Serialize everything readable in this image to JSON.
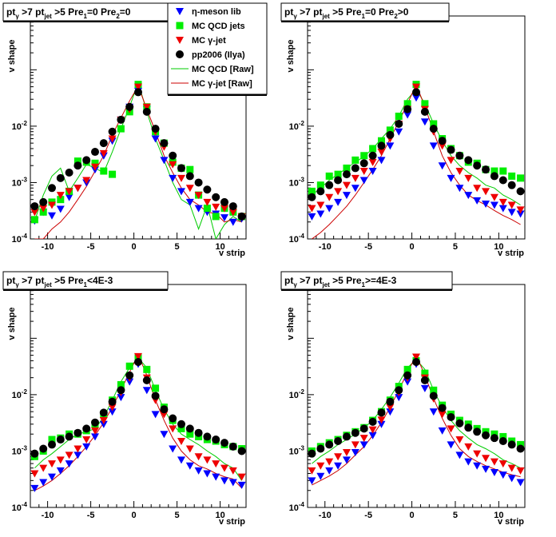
{
  "colors": {
    "eta": "#0000ff",
    "qcd": "#00ee00",
    "gjet": "#ee0000",
    "pp": "#000000",
    "qcd_raw": "#00cc00",
    "gjet_raw": "#cc0000"
  },
  "legend": [
    {
      "label": "η-meson lib",
      "marker": "triangle-down",
      "color": "#0000ff"
    },
    {
      "label": "MC QCD jets",
      "marker": "square",
      "color": "#00ee00"
    },
    {
      "label": "MC γ-jet",
      "marker": "triangle-down",
      "color": "#ee0000"
    },
    {
      "label": "pp2006 (Ilya)",
      "marker": "circle",
      "color": "#000000"
    },
    {
      "label": "MC QCD [Raw]",
      "marker": "line",
      "color": "#00cc00"
    },
    {
      "label": "MC γ-jet [Raw]",
      "marker": "line",
      "color": "#cc0000"
    }
  ],
  "chart_data": [
    {
      "type": "scatter",
      "title": "pt_γ>7 pt_jet>5 Pre_1=0 Pre_2=0",
      "xlabel": "v strip",
      "ylabel": "v shape",
      "yscale": "log",
      "xlim": [
        -12,
        13
      ],
      "ylim": [
        0.0001,
        0.9
      ],
      "x_ticks": [
        "-10",
        "-5",
        "0",
        "5",
        "10"
      ],
      "y_ticks": [
        "10^-4",
        "10^-3",
        "10^-2"
      ],
      "x": [
        -11.5,
        -10.5,
        -9.5,
        -8.5,
        -7.5,
        -6.5,
        -5.5,
        -4.5,
        -3.5,
        -2.5,
        -1.5,
        -0.5,
        0.5,
        1.5,
        2.5,
        3.5,
        4.5,
        5.5,
        6.5,
        7.5,
        8.5,
        9.5,
        10.5,
        11.5,
        12.5
      ],
      "series": [
        {
          "name": "η-meson lib",
          "kind": "marker",
          "values": [
            0.00021,
            0.0003,
            0.00026,
            0.00034,
            0.00055,
            0.0008,
            0.001,
            0.0017,
            0.003,
            0.0055,
            0.013,
            0.022,
            0.042,
            0.02,
            0.006,
            0.0025,
            0.0012,
            0.0007,
            0.00045,
            0.00035,
            0.0003,
            0.00028,
            0.00024,
            0.0002,
            0.00023
          ]
        },
        {
          "name": "MC QCD jets",
          "kind": "marker",
          "values": [
            0.00022,
            0.0003,
            0.00045,
            0.0005,
            0.0007,
            0.0024,
            0.0023,
            0.0022,
            0.0016,
            0.0014,
            0.009,
            0.018,
            0.055,
            0.022,
            0.008,
            0.005,
            0.0023,
            0.0018,
            0.0017,
            0.0006,
            0.00035,
            0.00025,
            0.00035,
            0.0003,
            0.00025
          ]
        },
        {
          "name": "MC γ-jet",
          "kind": "marker",
          "values": [
            0.0003,
            0.00035,
            0.0004,
            0.0006,
            0.0007,
            0.0008,
            0.0011,
            0.0019,
            0.0033,
            0.006,
            0.013,
            0.02,
            0.05,
            0.022,
            0.008,
            0.0043,
            0.0021,
            0.0012,
            0.0008,
            0.0006,
            0.00045,
            0.00037,
            0.00035,
            0.0003,
            0.00025
          ]
        },
        {
          "name": "pp2006 (Ilya)",
          "kind": "marker",
          "values": [
            0.00038,
            0.00045,
            0.0008,
            0.0012,
            0.0015,
            0.002,
            0.0025,
            0.0035,
            0.005,
            0.008,
            0.013,
            0.022,
            0.04,
            0.018,
            0.009,
            0.005,
            0.003,
            0.0018,
            0.0013,
            0.001,
            0.00075,
            0.00055,
            0.00045,
            0.00038,
            0.00025
          ]
        },
        {
          "name": "MC QCD [Raw]",
          "kind": "line",
          "values": [
            0.00021,
            0.0006,
            0.0013,
            0.0018,
            0.0007,
            0.0012,
            0.0021,
            0.0018,
            0.0015,
            0.0035,
            0.009,
            0.022,
            0.06,
            0.018,
            0.006,
            0.0025,
            0.001,
            0.0005,
            0.0004,
            0.00015,
            0.0004,
            0.0001,
            0.00018,
            0.00025,
            0.0002
          ]
        },
        {
          "name": "MC γ-jet [Raw]",
          "kind": "line",
          "values": [
            0.0001,
            0.0001,
            0.00015,
            0.0002,
            0.0003,
            0.0005,
            0.00085,
            0.0016,
            0.003,
            0.007,
            0.014,
            0.028,
            0.052,
            0.02,
            0.008,
            0.003,
            0.0015,
            0.0008,
            0.0005,
            0.0004,
            0.0003,
            0.00028,
            0.0002,
            0.00022,
            0.0002
          ]
        }
      ]
    },
    {
      "type": "scatter",
      "title": "pt_γ>7 pt_jet>5 Pre_1=0 Pre_2>0",
      "xlabel": "v strip",
      "ylabel": "v shape",
      "yscale": "log",
      "xlim": [
        -12,
        13
      ],
      "ylim": [
        0.0001,
        0.9
      ],
      "x_ticks": [
        "-10",
        "-5",
        "0",
        "5",
        "10"
      ],
      "y_ticks": [
        "10^-4",
        "10^-3",
        "10^-2"
      ],
      "x": [
        -11.5,
        -10.5,
        -9.5,
        -8.5,
        -7.5,
        -6.5,
        -5.5,
        -4.5,
        -3.5,
        -2.5,
        -1.5,
        -0.5,
        0.5,
        1.5,
        2.5,
        3.5,
        4.5,
        5.5,
        6.5,
        7.5,
        8.5,
        9.5,
        10.5,
        11.5,
        12.5
      ],
      "series": [
        {
          "name": "η-meson lib",
          "kind": "marker",
          "values": [
            0.00025,
            0.00028,
            0.00035,
            0.00045,
            0.0006,
            0.0008,
            0.0011,
            0.0016,
            0.0025,
            0.0045,
            0.008,
            0.016,
            0.032,
            0.012,
            0.0045,
            0.002,
            0.0012,
            0.0008,
            0.0006,
            0.00048,
            0.00042,
            0.0004,
            0.00035,
            0.0003,
            0.00028
          ]
        },
        {
          "name": "MC QCD jets",
          "kind": "marker",
          "values": [
            0.0007,
            0.0009,
            0.0013,
            0.0014,
            0.0018,
            0.0025,
            0.003,
            0.004,
            0.0055,
            0.0085,
            0.015,
            0.025,
            0.055,
            0.025,
            0.011,
            0.006,
            0.004,
            0.003,
            0.0023,
            0.0022,
            0.0017,
            0.0016,
            0.0016,
            0.0013,
            0.0012
          ]
        },
        {
          "name": "MC γ-jet",
          "kind": "marker",
          "values": [
            0.00035,
            0.0004,
            0.00055,
            0.0007,
            0.0009,
            0.0012,
            0.0016,
            0.0023,
            0.0035,
            0.006,
            0.011,
            0.02,
            0.05,
            0.02,
            0.008,
            0.0045,
            0.0025,
            0.0016,
            0.0012,
            0.0008,
            0.0007,
            0.00055,
            0.00045,
            0.0004,
            0.00033
          ]
        },
        {
          "name": "pp2006 (Ilya)",
          "kind": "marker",
          "values": [
            0.00055,
            0.0007,
            0.0009,
            0.0011,
            0.0014,
            0.0018,
            0.0022,
            0.003,
            0.0045,
            0.007,
            0.011,
            0.02,
            0.04,
            0.018,
            0.009,
            0.0055,
            0.0038,
            0.003,
            0.0025,
            0.002,
            0.0017,
            0.0013,
            0.0011,
            0.0009,
            0.0007
          ]
        },
        {
          "name": "MC QCD [Raw]",
          "kind": "line",
          "values": [
            0.0006,
            0.0008,
            0.0011,
            0.0014,
            0.0018,
            0.0023,
            0.0029,
            0.004,
            0.006,
            0.009,
            0.015,
            0.03,
            0.045,
            0.025,
            0.011,
            0.0055,
            0.003,
            0.002,
            0.0015,
            0.0012,
            0.0009,
            0.0008,
            0.0006,
            0.0005,
            0.0004
          ]
        },
        {
          "name": "MC γ-jet [Raw]",
          "kind": "line",
          "values": [
            0.0001,
            0.00013,
            0.00018,
            0.00026,
            0.00038,
            0.0006,
            0.001,
            0.0017,
            0.003,
            0.006,
            0.012,
            0.025,
            0.055,
            0.022,
            0.008,
            0.003,
            0.0015,
            0.0009,
            0.0006,
            0.00048,
            0.0004,
            0.00032,
            0.00026,
            0.00022,
            0.00018
          ]
        }
      ]
    },
    {
      "type": "scatter",
      "title": "pt_γ>7 pt_jet>5 Pre_1<4E-3",
      "xlabel": "v strip",
      "ylabel": "v shape",
      "yscale": "log",
      "xlim": [
        -12,
        13
      ],
      "ylim": [
        0.0001,
        0.9
      ],
      "x_ticks": [
        "-10",
        "-5",
        "0",
        "5",
        "10"
      ],
      "y_ticks": [
        "10^-4",
        "10^-3",
        "10^-2"
      ],
      "x": [
        -11.5,
        -10.5,
        -9.5,
        -8.5,
        -7.5,
        -6.5,
        -5.5,
        -4.5,
        -3.5,
        -2.5,
        -1.5,
        -0.5,
        0.5,
        1.5,
        2.5,
        3.5,
        4.5,
        5.5,
        6.5,
        7.5,
        8.5,
        9.5,
        10.5,
        11.5,
        12.5
      ],
      "series": [
        {
          "name": "η-meson lib",
          "kind": "marker",
          "values": [
            0.00022,
            0.00028,
            0.00035,
            0.00045,
            0.0006,
            0.00085,
            0.0012,
            0.0018,
            0.003,
            0.005,
            0.009,
            0.017,
            0.035,
            0.012,
            0.0045,
            0.002,
            0.0011,
            0.0007,
            0.00055,
            0.00045,
            0.0004,
            0.00035,
            0.0003,
            0.00028,
            0.00025
          ]
        },
        {
          "name": "MC QCD jets",
          "kind": "marker",
          "values": [
            0.0008,
            0.001,
            0.0016,
            0.0017,
            0.002,
            0.002,
            0.0023,
            0.003,
            0.0045,
            0.008,
            0.015,
            0.032,
            0.045,
            0.028,
            0.013,
            0.006,
            0.0035,
            0.0025,
            0.002,
            0.0018,
            0.0016,
            0.0015,
            0.0013,
            0.0012,
            0.0011
          ]
        },
        {
          "name": "MC γ-jet",
          "kind": "marker",
          "values": [
            0.0004,
            0.0005,
            0.0006,
            0.0007,
            0.00085,
            0.0011,
            0.0016,
            0.0023,
            0.0035,
            0.006,
            0.011,
            0.02,
            0.048,
            0.02,
            0.008,
            0.0045,
            0.0025,
            0.0015,
            0.0011,
            0.0008,
            0.0007,
            0.0006,
            0.0005,
            0.00045,
            0.00035
          ]
        },
        {
          "name": "pp2006 (Ilya)",
          "kind": "marker",
          "values": [
            0.0009,
            0.0011,
            0.0013,
            0.0016,
            0.0018,
            0.0021,
            0.0025,
            0.0032,
            0.0048,
            0.0075,
            0.012,
            0.022,
            0.038,
            0.018,
            0.0095,
            0.0055,
            0.0038,
            0.003,
            0.0025,
            0.0021,
            0.0018,
            0.0016,
            0.0014,
            0.0012,
            0.001
          ]
        },
        {
          "name": "MC QCD [Raw]",
          "kind": "line",
          "values": [
            0.0005,
            0.0007,
            0.0009,
            0.0012,
            0.0016,
            0.002,
            0.0022,
            0.0025,
            0.004,
            0.008,
            0.017,
            0.03,
            0.045,
            0.03,
            0.012,
            0.0055,
            0.003,
            0.002,
            0.0016,
            0.0013,
            0.001,
            0.0008,
            0.0006,
            0.0005,
            0.0003
          ]
        },
        {
          "name": "MC γ-jet [Raw]",
          "kind": "line",
          "values": [
            0.0002,
            0.00024,
            0.0003,
            0.0004,
            0.00055,
            0.0008,
            0.0012,
            0.0019,
            0.0032,
            0.006,
            0.012,
            0.025,
            0.052,
            0.022,
            0.008,
            0.0035,
            0.0017,
            0.001,
            0.0007,
            0.00055,
            0.00048,
            0.0004,
            0.00035,
            0.00032,
            0.00022
          ]
        }
      ]
    },
    {
      "type": "scatter",
      "title": "pt_γ>7 pt_jet>5 Pre_1>=4E-3",
      "xlabel": "v strip",
      "ylabel": "v shape",
      "yscale": "log",
      "xlim": [
        -12,
        13
      ],
      "ylim": [
        0.0001,
        0.9
      ],
      "x_ticks": [
        "-10",
        "-5",
        "0",
        "5",
        "10"
      ],
      "y_ticks": [
        "10^-4",
        "10^-3",
        "10^-2"
      ],
      "x": [
        -11.5,
        -10.5,
        -9.5,
        -8.5,
        -7.5,
        -6.5,
        -5.5,
        -4.5,
        -3.5,
        -2.5,
        -1.5,
        -0.5,
        0.5,
        1.5,
        2.5,
        3.5,
        4.5,
        5.5,
        6.5,
        7.5,
        8.5,
        9.5,
        10.5,
        11.5,
        12.5
      ],
      "series": [
        {
          "name": "η-meson lib",
          "kind": "marker",
          "values": [
            0.0003,
            0.00036,
            0.00045,
            0.00055,
            0.0007,
            0.00095,
            0.0013,
            0.0019,
            0.003,
            0.005,
            0.009,
            0.017,
            0.035,
            0.013,
            0.005,
            0.0023,
            0.0013,
            0.00085,
            0.00065,
            0.00055,
            0.00048,
            0.00042,
            0.00038,
            0.00033,
            0.00028
          ]
        },
        {
          "name": "MC QCD jets",
          "kind": "marker",
          "values": [
            0.001,
            0.0012,
            0.0014,
            0.0016,
            0.0019,
            0.0022,
            0.0026,
            0.0035,
            0.005,
            0.008,
            0.014,
            0.028,
            0.04,
            0.024,
            0.012,
            0.0065,
            0.0045,
            0.0035,
            0.003,
            0.0025,
            0.0022,
            0.002,
            0.0018,
            0.0015,
            0.0013
          ]
        },
        {
          "name": "MC γ-jet",
          "kind": "marker",
          "values": [
            0.00045,
            0.00055,
            0.00065,
            0.0008,
            0.00095,
            0.0013,
            0.0017,
            0.0024,
            0.0036,
            0.006,
            0.011,
            0.02,
            0.047,
            0.02,
            0.0085,
            0.0045,
            0.0025,
            0.0016,
            0.0012,
            0.0009,
            0.00075,
            0.00065,
            0.0006,
            0.0005,
            0.00045
          ]
        },
        {
          "name": "pp2006 (Ilya)",
          "kind": "marker",
          "values": [
            0.0009,
            0.0011,
            0.0013,
            0.0015,
            0.0018,
            0.0021,
            0.0025,
            0.0033,
            0.0048,
            0.0075,
            0.012,
            0.022,
            0.038,
            0.018,
            0.0095,
            0.0058,
            0.004,
            0.0031,
            0.0026,
            0.0022,
            0.0019,
            0.0017,
            0.0015,
            0.0013,
            0.0011
          ]
        },
        {
          "name": "MC QCD [Raw]",
          "kind": "line",
          "values": [
            0.0006,
            0.0008,
            0.001,
            0.0013,
            0.0016,
            0.002,
            0.0026,
            0.0035,
            0.0055,
            0.009,
            0.016,
            0.03,
            0.042,
            0.028,
            0.012,
            0.006,
            0.0035,
            0.0023,
            0.0017,
            0.0013,
            0.0011,
            0.0009,
            0.0007,
            0.0006,
            0.0005
          ]
        },
        {
          "name": "MC γ-jet [Raw]",
          "kind": "line",
          "values": [
            0.00025,
            0.0003,
            0.00036,
            0.00045,
            0.0006,
            0.00085,
            0.0012,
            0.0019,
            0.0032,
            0.006,
            0.012,
            0.025,
            0.05,
            0.022,
            0.0085,
            0.0038,
            0.0019,
            0.0011,
            0.0008,
            0.00065,
            0.00055,
            0.00048,
            0.00042,
            0.00038,
            0.00035
          ]
        }
      ]
    }
  ]
}
